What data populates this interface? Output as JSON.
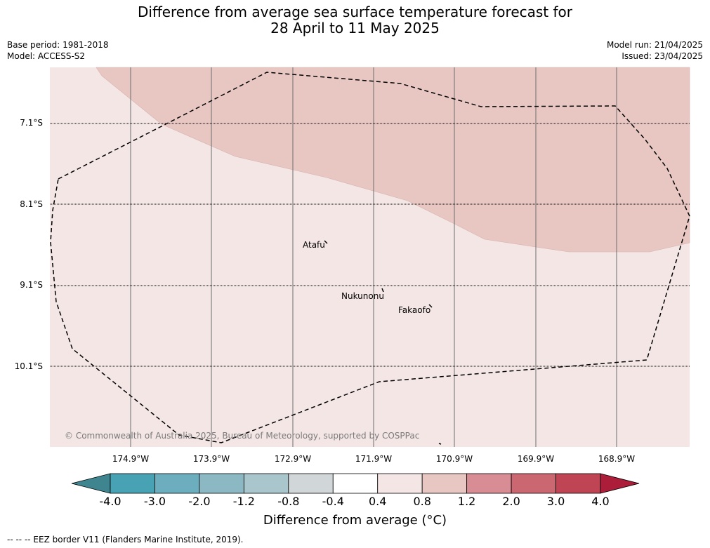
{
  "title_line1": "Difference from average sea surface temperature forecast for",
  "title_line2": "28 April to 11 May 2025",
  "meta": {
    "base_period": "Base period: 1981-2018",
    "model": "Model: ACCESS-S2",
    "model_run": "Model run: 21/04/2025",
    "issued": "Issued: 23/04/2025"
  },
  "lat_labels": [
    "7.1°S",
    "8.1°S",
    "9.1°S",
    "10.1°S"
  ],
  "lon_labels": [
    "174.9°W",
    "173.9°W",
    "172.9°W",
    "171.9°W",
    "170.9°W",
    "169.9°W",
    "168.9°W"
  ],
  "places": [
    "Atafu",
    "Nukunonu",
    "Fakaofo"
  ],
  "copyright": "© Commonwealth of Australia 2025, Bureau of Meteorology, supported by COSPPac",
  "colorbar": {
    "ticks": [
      "-4.0",
      "-3.0",
      "-2.0",
      "-1.2",
      "-0.8",
      "-0.4",
      "0.4",
      "0.8",
      "1.2",
      "2.0",
      "3.0",
      "4.0"
    ],
    "colors": [
      "#3f8590",
      "#47a3b4",
      "#6caebe",
      "#8cb8c3",
      "#a9c6cc",
      "#d1d6d8",
      "#ffffff",
      "#f4e6e5",
      "#e8c7c2",
      "#d88d94",
      "#cb6771",
      "#bf4555",
      "#ac1d3a"
    ],
    "title": "Difference from average (°C)"
  },
  "colors": {
    "anomaly_0_4_to_0_8": "#f4e6e5",
    "anomaly_0_8_to_1_2": "#e8c7c2",
    "eez_border": "#000000"
  },
  "footnote": "--  --  -- EEZ border V11 (Flanders Marine Institute, 2019)."
}
